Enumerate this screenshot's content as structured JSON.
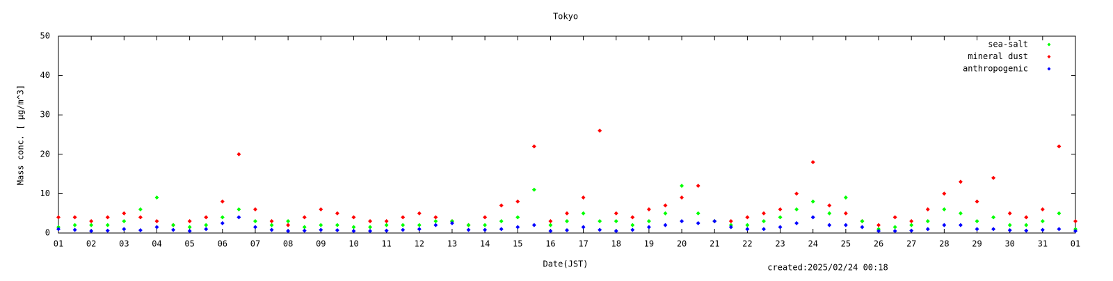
{
  "chart_data": {
    "type": "scatter",
    "title": "Tokyo",
    "xlabel": "Date(JST)",
    "ylabel": "Mass conc. [ μg/m^3]",
    "note": "created:2025/02/24 00:18",
    "x": [
      1,
      1.5,
      2,
      2.5,
      3,
      3.5,
      4,
      4.5,
      5,
      5.5,
      6,
      6.5,
      7,
      7.5,
      8,
      8.5,
      9,
      9.5,
      10,
      10.5,
      11,
      11.5,
      12,
      12.5,
      13,
      13.5,
      14,
      14.5,
      15,
      15.5,
      16,
      16.5,
      17,
      17.5,
      18,
      18.5,
      19,
      19.5,
      20,
      20.5,
      21,
      21.5,
      22,
      22.5,
      23,
      23.5,
      24,
      24.5,
      25,
      25.5,
      26,
      26.5,
      27,
      27.5,
      28,
      28.5,
      29,
      29.5,
      30,
      30.5,
      31,
      31.5,
      32
    ],
    "series": [
      {
        "name": "sea-salt",
        "color": "#00ff00",
        "values": [
          1.5,
          2,
          2,
          2,
          3,
          6,
          9,
          2,
          1.5,
          2,
          4,
          6,
          3,
          2,
          3,
          1.5,
          2,
          2,
          1.5,
          1.5,
          2,
          2,
          2,
          3,
          3,
          2,
          2,
          3,
          4,
          11,
          2,
          3,
          5,
          3,
          3,
          2,
          3,
          5,
          12,
          5,
          3,
          2,
          2,
          3,
          4,
          6,
          8,
          5,
          9,
          3,
          1,
          1.5,
          2,
          3,
          6,
          5,
          3,
          4,
          2,
          2,
          3,
          5,
          1
        ]
      },
      {
        "name": "mineral dust",
        "color": "#ff0000",
        "values": [
          4,
          4,
          3,
          4,
          5,
          4,
          3,
          2,
          3,
          4,
          8,
          20,
          6,
          3,
          2,
          4,
          6,
          5,
          4,
          3,
          3,
          4,
          5,
          4,
          3,
          2,
          4,
          7,
          8,
          22,
          3,
          5,
          9,
          26,
          5,
          4,
          6,
          7,
          9,
          12,
          3,
          3,
          4,
          5,
          6,
          10,
          18,
          7,
          5,
          3,
          2,
          4,
          3,
          6,
          10,
          13,
          8,
          14,
          5,
          4,
          6,
          22,
          3
        ]
      },
      {
        "name": "anthropogenic",
        "color": "#0000ff",
        "values": [
          1,
          0.8,
          0.5,
          0.6,
          1,
          0.7,
          1.5,
          0.8,
          0.5,
          1,
          2.5,
          4,
          1.5,
          0.8,
          0.5,
          0.6,
          0.8,
          0.7,
          0.5,
          0.5,
          0.6,
          0.8,
          1,
          2,
          2.5,
          0.8,
          0.8,
          1,
          1.5,
          2,
          0.5,
          0.7,
          1.5,
          0.8,
          0.5,
          0.8,
          1.5,
          2,
          3,
          2.5,
          3,
          1.5,
          1,
          1,
          1.5,
          2.5,
          4,
          2,
          2,
          1.5,
          0.5,
          0.5,
          0.6,
          1,
          2,
          2,
          1,
          1,
          0.7,
          0.6,
          0.8,
          1,
          0.5
        ]
      }
    ],
    "xlim": [
      1,
      32
    ],
    "xticks": [
      {
        "value": 1,
        "label": "01"
      },
      {
        "value": 2,
        "label": "02"
      },
      {
        "value": 3,
        "label": "03"
      },
      {
        "value": 4,
        "label": "04"
      },
      {
        "value": 5,
        "label": "05"
      },
      {
        "value": 6,
        "label": "06"
      },
      {
        "value": 7,
        "label": "07"
      },
      {
        "value": 8,
        "label": "08"
      },
      {
        "value": 9,
        "label": "09"
      },
      10,
      11,
      12,
      13,
      14,
      15,
      16,
      17,
      18,
      19,
      20,
      21,
      22,
      23,
      24,
      25,
      26,
      27,
      28,
      29,
      30,
      31,
      {
        "value": 32,
        "label": "01"
      }
    ],
    "ylim": [
      0,
      50
    ],
    "yticks": [
      0,
      10,
      20,
      30,
      40,
      50
    ],
    "legend": "upper right"
  }
}
